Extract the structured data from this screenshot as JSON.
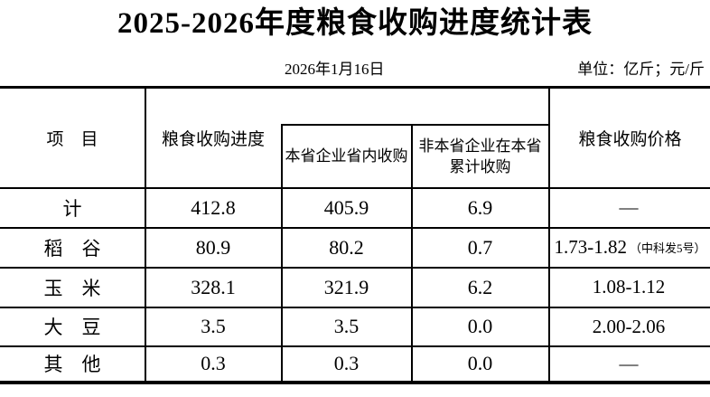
{
  "title": "2025-2026年度粮食收购进度统计表",
  "date": "2026年1月16日",
  "unit": "单位：亿斤；元/斤",
  "colors": {
    "text": "#000000",
    "background": "#ffffff",
    "line": "#000000"
  },
  "table": {
    "header": {
      "item": "项　目",
      "progress": "粮食收购进度",
      "sub1": "本省企业省内收购",
      "sub2_line1": "非本省企业在本省",
      "sub2_line2": "累计收购",
      "price": "粮食收购价格"
    },
    "rows": [
      {
        "label": "计",
        "v1": "412.8",
        "v2": "405.9",
        "v3": "6.9",
        "price": "—",
        "price_note": ""
      },
      {
        "label": "稻　谷",
        "v1": "80.9",
        "v2": "80.2",
        "v3": "0.7",
        "price": "1.73-1.82",
        "price_note": "（中科发5号）"
      },
      {
        "label": "玉　米",
        "v1": "328.1",
        "v2": "321.9",
        "v3": "6.2",
        "price": "1.08-1.12",
        "price_note": ""
      },
      {
        "label": "大　豆",
        "v1": "3.5",
        "v2": "3.5",
        "v3": "0.0",
        "price": "2.00-2.06",
        "price_note": ""
      },
      {
        "label": "其　他",
        "v1": "0.3",
        "v2": "0.3",
        "v3": "0.0",
        "price": "—",
        "price_note": ""
      }
    ]
  }
}
